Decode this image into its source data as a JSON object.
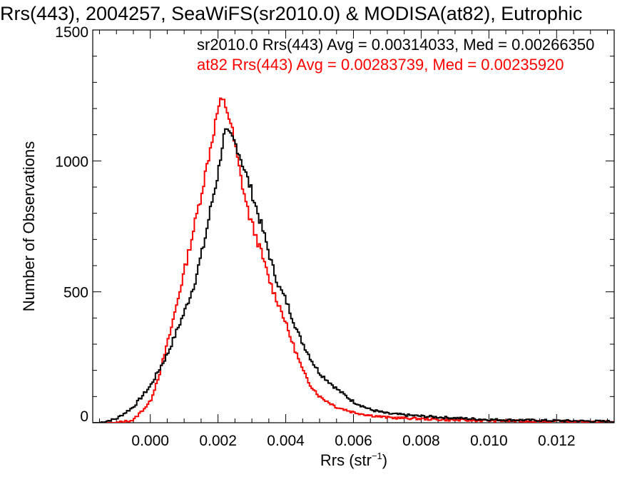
{
  "chart_data": {
    "type": "line",
    "title": "Rrs(443), 2004257, SeaWiFS(sr2010.0) & MODISA(at82), Eutrophic",
    "xlabel_main": "Rrs (str",
    "xlabel_sup": "−1",
    "xlabel_end": ")",
    "ylabel": "Number of Observations",
    "xlim": [
      -0.0017,
      0.0137
    ],
    "ylim": [
      0,
      1500
    ],
    "x_ticks": [
      0.0,
      0.002,
      0.004,
      0.006,
      0.008,
      0.01,
      0.012
    ],
    "x_tick_labels": [
      "0.000",
      "0.002",
      "0.004",
      "0.006",
      "0.008",
      "0.010",
      "0.012"
    ],
    "y_ticks": [
      0,
      500,
      1000,
      1500
    ],
    "y_tick_labels": [
      "0",
      "500",
      "1000",
      "1500"
    ],
    "grid": false,
    "legend_placement": "top",
    "series": [
      {
        "label": "sr2010.0 Rrs(443) Avg = 0.00314033, Med = 0.00266350",
        "color": "#000000",
        "x": [
          -0.0015,
          -0.001,
          -0.0005,
          0.0,
          0.0005,
          0.001,
          0.0013,
          0.0016,
          0.0018,
          0.002,
          0.0021,
          0.0022,
          0.0023,
          0.0024,
          0.0025,
          0.0026,
          0.0028,
          0.003,
          0.0032,
          0.0034,
          0.0036,
          0.0038,
          0.004,
          0.0042,
          0.0044,
          0.0046,
          0.0048,
          0.005,
          0.0055,
          0.006,
          0.0065,
          0.007,
          0.008,
          0.009,
          0.01,
          0.011,
          0.012,
          0.0135
        ],
        "y": [
          0,
          15,
          60,
          140,
          260,
          420,
          530,
          690,
          830,
          950,
          1040,
          1110,
          1100,
          1090,
          1070,
          1040,
          960,
          880,
          790,
          700,
          600,
          520,
          470,
          400,
          330,
          280,
          230,
          190,
          130,
          80,
          50,
          35,
          25,
          18,
          12,
          10,
          8,
          5
        ]
      },
      {
        "label": "at82 Rrs(443) Avg = 0.00283739, Med = 0.00235920",
        "color": "#ff0000",
        "x": [
          -0.0015,
          -0.001,
          -0.0005,
          0.0,
          0.0003,
          0.0006,
          0.0009,
          0.0012,
          0.0015,
          0.0017,
          0.0019,
          0.002,
          0.0021,
          0.0022,
          0.0023,
          0.0024,
          0.0025,
          0.0027,
          0.0029,
          0.0031,
          0.0033,
          0.0035,
          0.0037,
          0.0039,
          0.0041,
          0.0043,
          0.0045,
          0.0047,
          0.005,
          0.0055,
          0.006,
          0.0065,
          0.007,
          0.008,
          0.009,
          0.01,
          0.011,
          0.012,
          0.0135
        ],
        "y": [
          0,
          0,
          10,
          80,
          200,
          350,
          520,
          690,
          870,
          1000,
          1130,
          1200,
          1230,
          1220,
          1180,
          1130,
          1060,
          920,
          800,
          720,
          640,
          550,
          480,
          420,
          340,
          270,
          200,
          150,
          100,
          60,
          40,
          28,
          20,
          15,
          10,
          8,
          6,
          5,
          3
        ]
      }
    ]
  }
}
